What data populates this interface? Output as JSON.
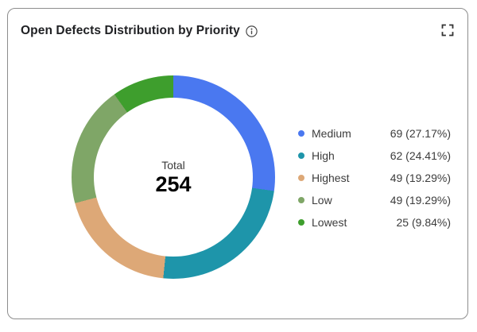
{
  "header": {
    "title": "Open Defects Distribution by Priority"
  },
  "donut": {
    "center_label": "Total",
    "center_value": "254"
  },
  "legend": {
    "items": [
      {
        "label": "Medium",
        "value_text": "69 (27.17%)",
        "color": "#4A78F0"
      },
      {
        "label": "High",
        "value_text": "62 (24.41%)",
        "color": "#1E95AA"
      },
      {
        "label": "Highest",
        "value_text": "49 (19.29%)",
        "color": "#DDA877"
      },
      {
        "label": "Low",
        "value_text": "49 (19.29%)",
        "color": "#7FA667"
      },
      {
        "label": "Lowest",
        "value_text": "25 (9.84%)",
        "color": "#3E9E2D"
      }
    ]
  },
  "chart_data": {
    "type": "pie",
    "subtype": "donut",
    "title": "Open Defects Distribution by Priority",
    "center_label": "Total",
    "total": 254,
    "series": [
      {
        "name": "Medium",
        "value": 69,
        "percent": 27.17,
        "color": "#4A78F0"
      },
      {
        "name": "High",
        "value": 62,
        "percent": 24.41,
        "color": "#1E95AA"
      },
      {
        "name": "Highest",
        "value": 49,
        "percent": 19.29,
        "color": "#DDA877"
      },
      {
        "name": "Low",
        "value": 49,
        "percent": 19.29,
        "color": "#7FA667"
      },
      {
        "name": "Lowest",
        "value": 25,
        "percent": 9.84,
        "color": "#3E9E2D"
      }
    ],
    "start_angle_deg": 0,
    "direction": "clockwise",
    "legend_position": "right"
  }
}
